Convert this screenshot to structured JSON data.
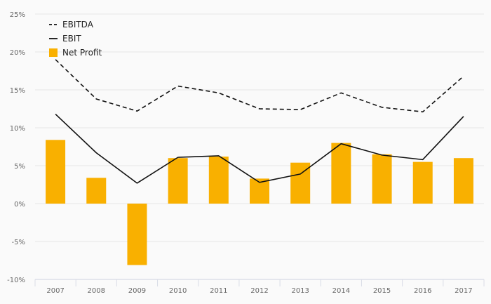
{
  "chart_data": {
    "type": "bar",
    "categories": [
      "2007",
      "2008",
      "2009",
      "2010",
      "2011",
      "2012",
      "2013",
      "2014",
      "2015",
      "2016",
      "2017"
    ],
    "series": [
      {
        "name": "EBITDA",
        "kind": "line",
        "style": "dashed",
        "color": "#111111",
        "values": [
          19.0,
          13.8,
          12.2,
          15.5,
          14.6,
          12.5,
          12.4,
          14.6,
          12.7,
          12.1,
          16.8
        ]
      },
      {
        "name": "EBIT",
        "kind": "line",
        "style": "solid",
        "color": "#111111",
        "values": [
          11.8,
          6.7,
          2.7,
          6.1,
          6.3,
          2.8,
          3.9,
          7.9,
          6.4,
          5.8,
          11.5
        ]
      },
      {
        "name": "Net Profit",
        "kind": "bar",
        "color": "#f9b000",
        "values": [
          8.4,
          3.4,
          -8.1,
          6.0,
          6.2,
          3.3,
          5.4,
          8.0,
          6.5,
          5.5,
          6.0
        ]
      }
    ],
    "y_ticks": [
      "25%",
      "20%",
      "15%",
      "10%",
      "5%",
      "0%",
      "-5%",
      "-10%"
    ],
    "ylim": [
      -10,
      25
    ],
    "grid": true,
    "legend": "top-left"
  }
}
